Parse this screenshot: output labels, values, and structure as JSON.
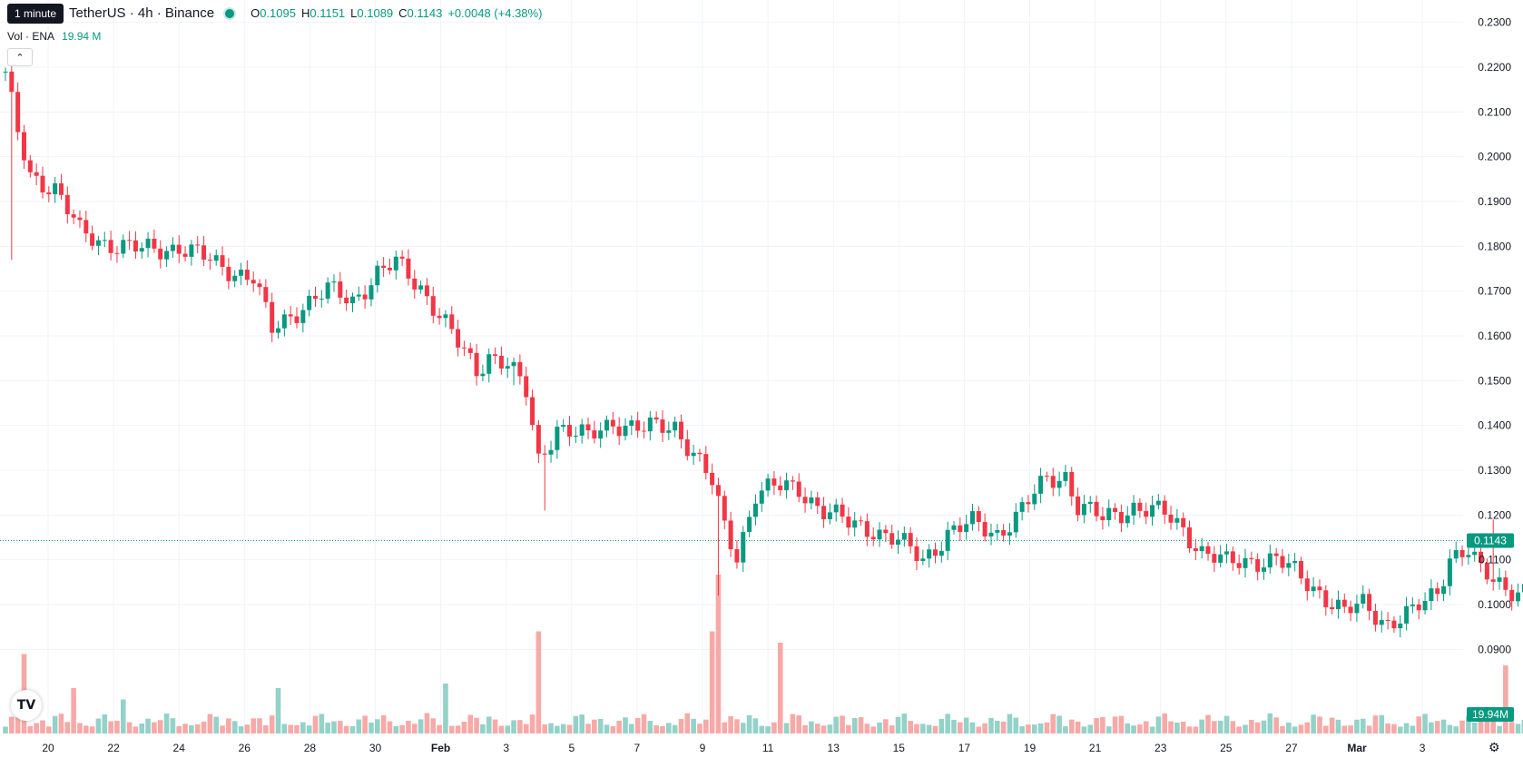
{
  "legend": {
    "title": "TetherUS · 4h · Binance",
    "tooltip": "1 minute",
    "o_label": "O",
    "o": "0.1095",
    "h_label": "H",
    "h": "0.1151",
    "l_label": "L",
    "l": "0.1089",
    "c_label": "C",
    "c": "0.1143",
    "change": "+0.0048 (+4.38%)"
  },
  "volume": {
    "label": "Vol · ENA",
    "value": "19.94 M",
    "axis_badge": "19.94M"
  },
  "colors": {
    "up": "#089981",
    "down": "#f23645",
    "up_vol": "#93d2c8",
    "down_vol": "#f7a9a7",
    "grid": "#f0f3fa"
  },
  "icons": {
    "collapse": "chevron-up-icon",
    "logo": "tradingview-logo-icon",
    "settings": "gear-icon"
  },
  "chart_data": {
    "type": "candlestick",
    "price_axis": {
      "min": 0.085,
      "max": 0.235,
      "ticks": [
        "0.2300",
        "0.2200",
        "0.2100",
        "0.2000",
        "0.1900",
        "0.1800",
        "0.1700",
        "0.1600",
        "0.1500",
        "0.1400",
        "0.1300",
        "0.1200",
        "0.1100",
        "0.1000",
        "0.0900"
      ]
    },
    "last_price": "0.1143",
    "x_labels": [
      "20",
      "22",
      "24",
      "26",
      "28",
      "30",
      "Feb",
      "3",
      "5",
      "7",
      "9",
      "11",
      "13",
      "15",
      "17",
      "19",
      "21",
      "23",
      "25",
      "27",
      "Mar",
      "3"
    ],
    "x_label_bold": [
      "Feb",
      "Mar"
    ],
    "anchors": [
      [
        0,
        0.218
      ],
      [
        2,
        0.205
      ],
      [
        4,
        0.196
      ],
      [
        8,
        0.193
      ],
      [
        12,
        0.183
      ],
      [
        16,
        0.181
      ],
      [
        22,
        0.179
      ],
      [
        28,
        0.18
      ],
      [
        34,
        0.176
      ],
      [
        40,
        0.173
      ],
      [
        43,
        0.161
      ],
      [
        48,
        0.167
      ],
      [
        52,
        0.17
      ],
      [
        56,
        0.168
      ],
      [
        60,
        0.174
      ],
      [
        63,
        0.176
      ],
      [
        67,
        0.171
      ],
      [
        70,
        0.165
      ],
      [
        73,
        0.158
      ],
      [
        76,
        0.152
      ],
      [
        78,
        0.156
      ],
      [
        81,
        0.154
      ],
      [
        84,
        0.147
      ],
      [
        86,
        0.132
      ],
      [
        89,
        0.14
      ],
      [
        94,
        0.137
      ],
      [
        98,
        0.141
      ],
      [
        103,
        0.139
      ],
      [
        108,
        0.14
      ],
      [
        111,
        0.134
      ],
      [
        114,
        0.127
      ],
      [
        116,
        0.117
      ],
      [
        118,
        0.111
      ],
      [
        121,
        0.125
      ],
      [
        124,
        0.126
      ],
      [
        128,
        0.126
      ],
      [
        132,
        0.121
      ],
      [
        136,
        0.118
      ],
      [
        140,
        0.117
      ],
      [
        144,
        0.114
      ],
      [
        148,
        0.11
      ],
      [
        152,
        0.116
      ],
      [
        156,
        0.118
      ],
      [
        160,
        0.116
      ],
      [
        164,
        0.121
      ],
      [
        168,
        0.128
      ],
      [
        171,
        0.129
      ],
      [
        173,
        0.122
      ],
      [
        177,
        0.119
      ],
      [
        182,
        0.122
      ],
      [
        187,
        0.12
      ],
      [
        190,
        0.117
      ],
      [
        193,
        0.112
      ],
      [
        197,
        0.109
      ],
      [
        201,
        0.11
      ],
      [
        205,
        0.11
      ],
      [
        208,
        0.107
      ],
      [
        212,
        0.103
      ],
      [
        216,
        0.098
      ],
      [
        219,
        0.1
      ],
      [
        223,
        0.096
      ],
      [
        227,
        0.098
      ],
      [
        231,
        0.103
      ],
      [
        233,
        0.111
      ],
      [
        236,
        0.112
      ],
      [
        238,
        0.107
      ],
      [
        242,
        0.104
      ],
      [
        246,
        0.103
      ],
      [
        249,
        0.099
      ],
      [
        251,
        0.097
      ],
      [
        253,
        0.102
      ],
      [
        256,
        0.105
      ],
      [
        260,
        0.104
      ],
      [
        263,
        0.109
      ],
      [
        265,
        0.1143
      ]
    ],
    "wick_spikes": [
      [
        1,
        0.177
      ],
      [
        82,
        0.149
      ],
      [
        87,
        0.121
      ],
      [
        115,
        0.102
      ],
      [
        240,
        0.119
      ]
    ],
    "volume_spikes": [
      [
        3,
        0.35
      ],
      [
        11,
        0.2
      ],
      [
        19,
        0.15
      ],
      [
        44,
        0.2
      ],
      [
        71,
        0.22
      ],
      [
        86,
        0.45
      ],
      [
        114,
        0.45
      ],
      [
        115,
        0.7
      ],
      [
        125,
        0.4
      ],
      [
        242,
        0.3
      ],
      [
        251,
        0.18
      ]
    ],
    "volume_axis_badge": "19.94M"
  }
}
